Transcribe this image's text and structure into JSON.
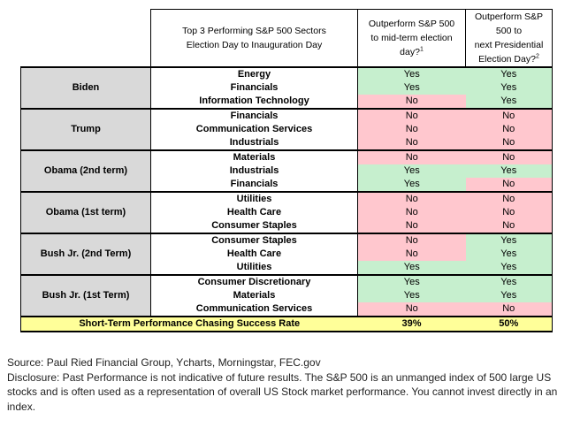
{
  "header": {
    "col1_line1": "Top 3 Performing S&P 500 Sectors",
    "col1_line2": "Election Day to Inauguration Day",
    "col2_line1": "Outperform S&P 500",
    "col2_line2": "to mid-term election",
    "col2_line3": "day?",
    "col2_sup": "1",
    "col3_line1": "Outperform S&P 500 to",
    "col3_line2": "next Presidential",
    "col3_line3": "Election Day?",
    "col3_sup": "2"
  },
  "groups": [
    {
      "president": "Biden",
      "rows": [
        {
          "sector": "Energy",
          "midterm": "Yes",
          "next": "Yes"
        },
        {
          "sector": "Financials",
          "midterm": "Yes",
          "next": "Yes"
        },
        {
          "sector": "Information Technology",
          "midterm": "No",
          "next": "Yes"
        }
      ]
    },
    {
      "president": "Trump",
      "rows": [
        {
          "sector": "Financials",
          "midterm": "No",
          "next": "No"
        },
        {
          "sector": "Communication Services",
          "midterm": "No",
          "next": "No"
        },
        {
          "sector": "Industrials",
          "midterm": "No",
          "next": "No"
        }
      ]
    },
    {
      "president": "Obama (2nd term)",
      "rows": [
        {
          "sector": "Materials",
          "midterm": "No",
          "next": "No"
        },
        {
          "sector": "Industrials",
          "midterm": "Yes",
          "next": "Yes"
        },
        {
          "sector": "Financials",
          "midterm": "Yes",
          "next": "No"
        }
      ]
    },
    {
      "president": "Obama (1st term)",
      "rows": [
        {
          "sector": "Utilities",
          "midterm": "No",
          "next": "No"
        },
        {
          "sector": "Health Care",
          "midterm": "No",
          "next": "No"
        },
        {
          "sector": "Consumer Staples",
          "midterm": "No",
          "next": "No"
        }
      ]
    },
    {
      "president": "Bush Jr. (2nd Term)",
      "rows": [
        {
          "sector": "Consumer Staples",
          "midterm": "No",
          "next": "Yes"
        },
        {
          "sector": "Health Care",
          "midterm": "No",
          "next": "Yes"
        },
        {
          "sector": "Utilities",
          "midterm": "Yes",
          "next": "Yes"
        }
      ]
    },
    {
      "president": "Bush Jr. (1st Term)",
      "rows": [
        {
          "sector": "Consumer Discretionary",
          "midterm": "Yes",
          "next": "Yes"
        },
        {
          "sector": "Materials",
          "midterm": "Yes",
          "next": "Yes"
        },
        {
          "sector": "Communication Services",
          "midterm": "No",
          "next": "No"
        }
      ]
    }
  ],
  "summary": {
    "label": "Short-Term Performance Chasing Success Rate",
    "midterm": "39%",
    "next": "50%"
  },
  "colors": {
    "yes": "#c6efce",
    "no": "#ffc7ce",
    "president": "#d9d9d9",
    "summary": "#ffff99"
  },
  "notes": {
    "source": "Source: Paul Ried Financial Group, Ycharts, Morningstar, FEC.gov",
    "disclosure": "Disclosure: Past Performance is not indicative of future results. The S&P 500 is an unmanged index of 500 large US stocks and is often used as a representation of overall US Stock market performance. You cannot invest directly in an index."
  }
}
